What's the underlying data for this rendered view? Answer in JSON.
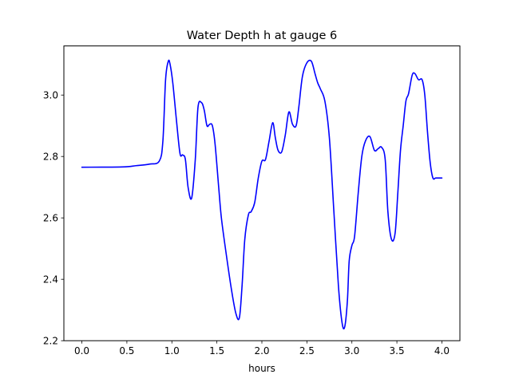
{
  "chart_data": {
    "type": "line",
    "title": "Water Depth h at gauge 6",
    "xlabel": "hours",
    "ylabel": "",
    "xlim": [
      -0.2,
      4.2
    ],
    "ylim": [
      2.2,
      3.16
    ],
    "grid": false,
    "legend": "none",
    "xticks": [
      0.0,
      0.5,
      1.0,
      1.5,
      2.0,
      2.5,
      3.0,
      3.5,
      4.0
    ],
    "xtick_labels": [
      "0.0",
      "0.5",
      "1.0",
      "1.5",
      "2.0",
      "2.5",
      "3.0",
      "3.5",
      "4.0"
    ],
    "yticks": [
      2.2,
      2.4,
      2.6,
      2.8,
      3.0
    ],
    "ytick_labels": [
      "2.2",
      "2.4",
      "2.6",
      "2.8",
      "3.0"
    ],
    "series": [
      {
        "color": "#0000ff",
        "x": [
          0.0,
          0.45,
          0.6,
          0.75,
          0.86,
          0.9,
          0.93,
          0.96,
          0.98,
          1.01,
          1.05,
          1.09,
          1.12,
          1.15,
          1.18,
          1.22,
          1.26,
          1.29,
          1.33,
          1.36,
          1.39,
          1.42,
          1.45,
          1.48,
          1.52,
          1.55,
          1.6,
          1.66,
          1.71,
          1.75,
          1.78,
          1.81,
          1.85,
          1.88,
          1.92,
          1.96,
          2.0,
          2.04,
          2.08,
          2.12,
          2.15,
          2.18,
          2.22,
          2.26,
          2.3,
          2.34,
          2.38,
          2.41,
          2.45,
          2.5,
          2.55,
          2.59,
          2.62,
          2.65,
          2.7,
          2.75,
          2.8,
          2.85,
          2.89,
          2.92,
          2.95,
          2.97,
          3.0,
          3.03,
          3.07,
          3.11,
          3.15,
          3.2,
          3.25,
          3.29,
          3.33,
          3.37,
          3.4,
          3.44,
          3.48,
          3.51,
          3.54,
          3.57,
          3.6,
          3.63,
          3.67,
          3.7,
          3.74,
          3.78,
          3.81,
          3.84,
          3.87,
          3.9,
          3.93,
          3.96,
          3.98,
          4.0
        ],
        "y": [
          2.765,
          2.766,
          2.77,
          2.775,
          2.785,
          2.85,
          3.05,
          3.11,
          3.1,
          3.04,
          2.92,
          2.81,
          2.805,
          2.79,
          2.7,
          2.665,
          2.79,
          2.96,
          2.975,
          2.95,
          2.9,
          2.905,
          2.9,
          2.84,
          2.7,
          2.6,
          2.49,
          2.37,
          2.29,
          2.275,
          2.38,
          2.53,
          2.61,
          2.62,
          2.65,
          2.73,
          2.785,
          2.79,
          2.85,
          2.91,
          2.86,
          2.82,
          2.815,
          2.87,
          2.945,
          2.905,
          2.9,
          2.96,
          3.06,
          3.105,
          3.11,
          3.07,
          3.04,
          3.02,
          2.98,
          2.86,
          2.62,
          2.38,
          2.26,
          2.245,
          2.33,
          2.46,
          2.51,
          2.54,
          2.68,
          2.8,
          2.85,
          2.865,
          2.82,
          2.825,
          2.83,
          2.79,
          2.62,
          2.53,
          2.55,
          2.68,
          2.82,
          2.9,
          2.98,
          3.005,
          3.065,
          3.07,
          3.05,
          3.05,
          3.0,
          2.88,
          2.78,
          2.73,
          2.73,
          2.73,
          2.73,
          2.73
        ]
      }
    ]
  }
}
